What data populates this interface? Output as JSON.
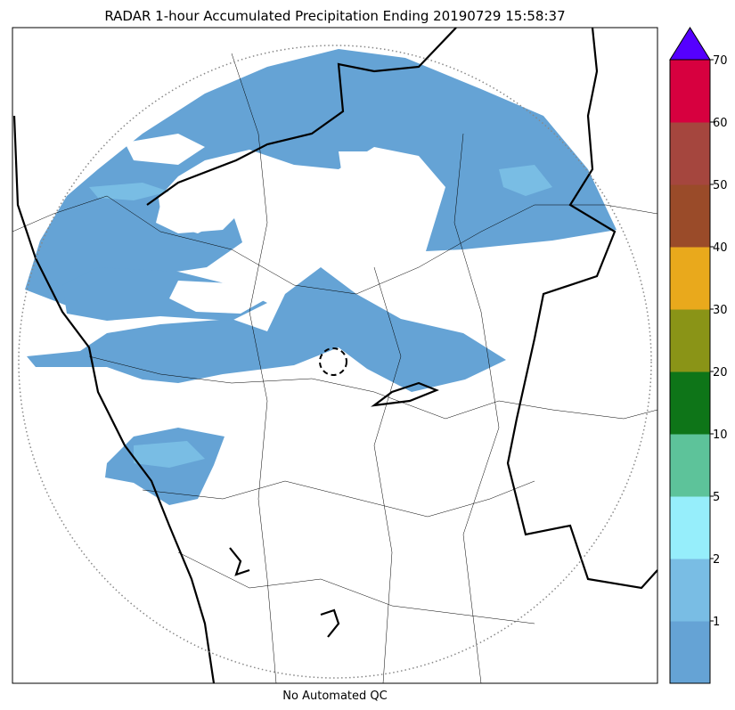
{
  "title": "RADAR 1-hour Accumulated Precipitation Ending 20190729 15:58:37",
  "footer": "No Automated QC",
  "colorbar": {
    "ticks": [
      1,
      2,
      5,
      10,
      20,
      30,
      40,
      50,
      60,
      70
    ],
    "colors": [
      "#65a3d5",
      "#79bde4",
      "#96eefb",
      "#5dc39a",
      "#0e7518",
      "#8a9417",
      "#e9a91c",
      "#9a4b29",
      "#a5463e",
      "#d7003f"
    ],
    "extend_color": "#5500ff"
  }
}
